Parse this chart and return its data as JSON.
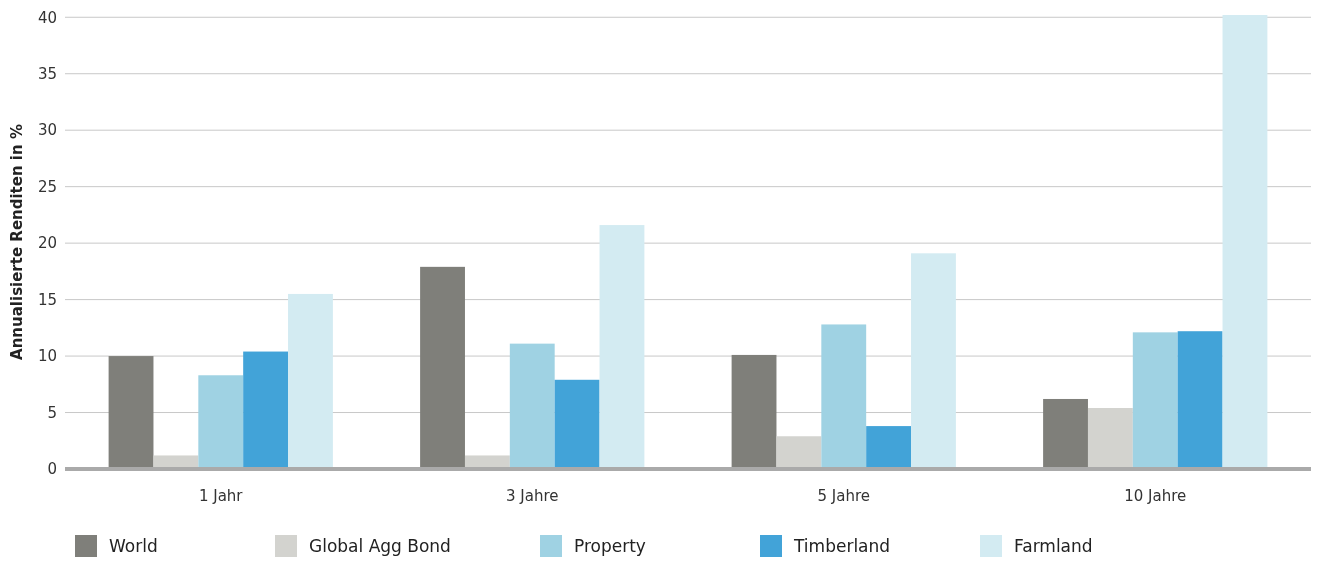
{
  "chart_data": {
    "type": "bar",
    "ylabel": "Annualisierte Renditen in %",
    "categories": [
      "1 Jahr",
      "3 Jahre",
      "5 Jahre",
      "10 Jahre"
    ],
    "series": [
      {
        "name": "World",
        "color": "#7f7f7a",
        "values": [
          10,
          17.9,
          10.1,
          6.2
        ]
      },
      {
        "name": "Global Agg Bond",
        "color": "#d3d3cf",
        "values": [
          1.2,
          1.2,
          2.9,
          5.4
        ]
      },
      {
        "name": "Property",
        "color": "#9fd2e3",
        "values": [
          8.3,
          11.1,
          12.8,
          12.1
        ]
      },
      {
        "name": "Timberland",
        "color": "#42a3d8",
        "values": [
          10.4,
          7.9,
          3.8,
          12.2
        ]
      },
      {
        "name": "Farmland",
        "color": "#d3ebf2",
        "values": [
          15.5,
          21.6,
          19.1,
          40.2
        ]
      }
    ],
    "ylim": [
      0,
      40.2
    ],
    "yticks": [
      0,
      5,
      10,
      15,
      20,
      25,
      30,
      35,
      40
    ],
    "grid": "y",
    "legend": "bottom"
  }
}
